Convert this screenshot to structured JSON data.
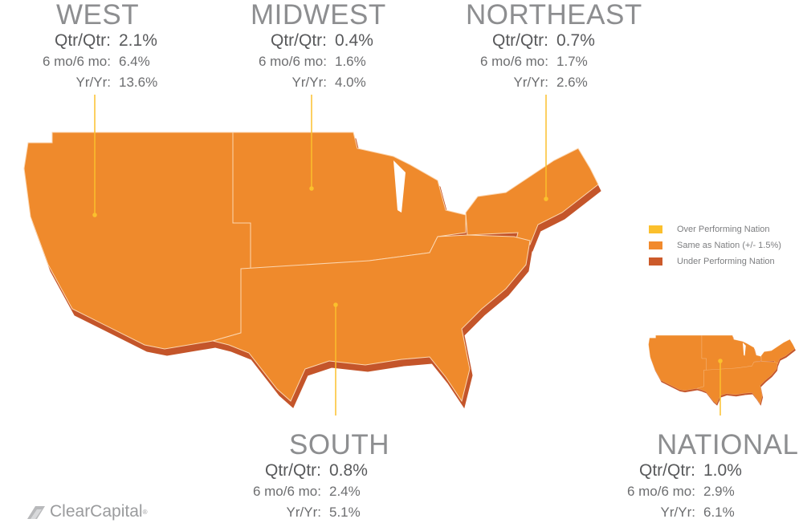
{
  "regions": [
    {
      "name": "WEST",
      "stats": [
        {
          "label": "Qtr/Qtr:",
          "value": "2.1%"
        },
        {
          "label": "6 mo/6 mo:",
          "value": "6.4%"
        },
        {
          "label": "Yr/Yr:",
          "value": "13.6%"
        }
      ]
    },
    {
      "name": "MIDWEST",
      "stats": [
        {
          "label": "Qtr/Qtr:",
          "value": "0.4%"
        },
        {
          "label": "6 mo/6 mo:",
          "value": "1.6%"
        },
        {
          "label": "Yr/Yr:",
          "value": "4.0%"
        }
      ]
    },
    {
      "name": "NORTHEAST",
      "stats": [
        {
          "label": "Qtr/Qtr:",
          "value": "0.7%"
        },
        {
          "label": "6 mo/6 mo:",
          "value": "1.7%"
        },
        {
          "label": "Yr/Yr:",
          "value": "2.6%"
        }
      ]
    },
    {
      "name": "SOUTH",
      "stats": [
        {
          "label": "Qtr/Qtr:",
          "value": "0.8%"
        },
        {
          "label": "6 mo/6 mo:",
          "value": "2.4%"
        },
        {
          "label": "Yr/Yr:",
          "value": "5.1%"
        }
      ]
    },
    {
      "name": "NATIONAL",
      "stats": [
        {
          "label": "Qtr/Qtr:",
          "value": "1.0%"
        },
        {
          "label": "6 mo/6 mo:",
          "value": "2.9%"
        },
        {
          "label": "Yr/Yr:",
          "value": "6.1%"
        }
      ]
    }
  ],
  "legend": [
    {
      "label": "Over Performing Nation",
      "color": "#fbc02d"
    },
    {
      "label": "Same as Nation (+/- 1.5%)",
      "color": "#f18a2d"
    },
    {
      "label": "Under Performing Nation",
      "color": "#cc5a2a"
    }
  ],
  "logo": {
    "name": "ClearCapital",
    "mark": "®"
  }
}
